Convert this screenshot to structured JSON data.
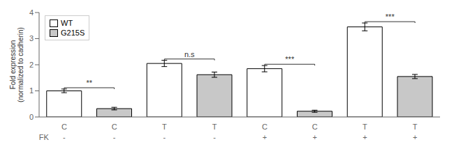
{
  "chart_data": {
    "type": "bar",
    "ylabel": "Fold expression\n(normalized to cadherin)",
    "categories": [
      "C",
      "C",
      "T",
      "T",
      "C",
      "C",
      "T",
      "T"
    ],
    "category_sublabels": {
      "title": "FK",
      "labels": [
        "-",
        "-",
        "-",
        "-",
        "+",
        "+",
        "+",
        "+"
      ]
    },
    "series": [
      {
        "name": "WT",
        "color": "white",
        "values": [
          1.0,
          null,
          2.05,
          null,
          1.85,
          null,
          3.45,
          null
        ],
        "errors": [
          0.07,
          null,
          0.12,
          null,
          0.12,
          null,
          0.15,
          null
        ]
      },
      {
        "name": "G215S",
        "color": "#c8c8c8",
        "values": [
          null,
          0.32,
          null,
          1.62,
          null,
          0.22,
          null,
          1.55
        ],
        "errors": [
          null,
          0.05,
          null,
          0.1,
          null,
          0.04,
          null,
          0.08
        ]
      }
    ],
    "ylim": [
      0,
      4
    ],
    "yticks": [
      0,
      1,
      2,
      3,
      4
    ],
    "legend": "upper left",
    "grid": false,
    "annotations": [
      {
        "text": "**",
        "y": 1.12
      },
      {
        "text": "n.s",
        "y": 2.22
      },
      {
        "text": "***",
        "y": 2.02
      },
      {
        "text": "***",
        "y": 3.65
      }
    ]
  }
}
